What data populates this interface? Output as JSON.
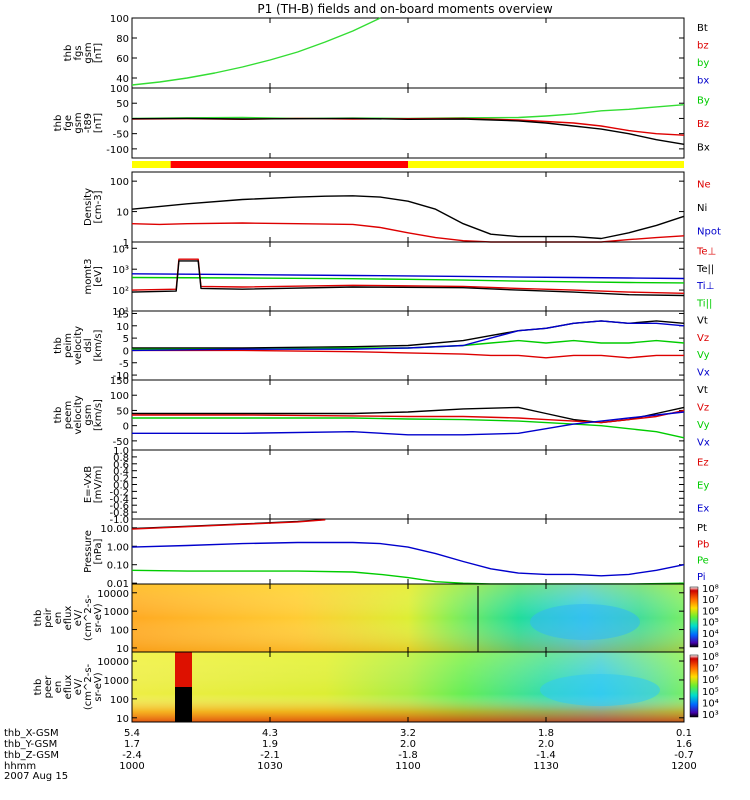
{
  "title": "P1 (TH-B) fields and on-board moments overview",
  "chart_data": [
    {
      "type": "line",
      "ylabel": [
        "thb",
        "fgs",
        "gsm",
        "[nT]"
      ],
      "yticks": [
        "100",
        "80",
        "60",
        "40"
      ],
      "ylim": [
        30,
        100
      ],
      "legend": [
        {
          "name": "Bt",
          "color": "#000000"
        },
        {
          "name": "bz",
          "color": "#dd0000"
        },
        {
          "name": "by",
          "color": "#00cc00"
        },
        {
          "name": "bx",
          "color": "#0000cc"
        }
      ],
      "series": [
        {
          "name": "by",
          "color": "#33dd33",
          "x": [
            0,
            0.05,
            0.1,
            0.15,
            0.2,
            0.25,
            0.3,
            0.35,
            0.4,
            0.45
          ],
          "y": [
            33,
            36,
            40,
            45,
            51,
            58,
            66,
            76,
            87,
            100
          ]
        }
      ]
    },
    {
      "type": "line",
      "ylabel": [
        "thb",
        "fge",
        "gsm",
        "-t89",
        "[nT]"
      ],
      "yticks": [
        "100",
        "50",
        "0",
        "-50",
        "-100"
      ],
      "ylim": [
        -130,
        100
      ],
      "legend": [
        {
          "name": "By",
          "color": "#00cc00"
        },
        {
          "name": "Bz",
          "color": "#dd0000"
        },
        {
          "name": "Bx",
          "color": "#000000"
        }
      ],
      "series": [
        {
          "name": "By",
          "color": "#33dd33",
          "x": [
            0,
            0.1,
            0.2,
            0.3,
            0.4,
            0.5,
            0.6,
            0.7,
            0.75,
            0.8,
            0.85,
            0.9,
            0.95,
            1.0
          ],
          "y": [
            0,
            2,
            3,
            0,
            1,
            0,
            2,
            3,
            8,
            15,
            25,
            30,
            38,
            45
          ]
        },
        {
          "name": "Bz",
          "color": "#dd0000",
          "x": [
            0,
            0.1,
            0.2,
            0.3,
            0.4,
            0.5,
            0.6,
            0.7,
            0.75,
            0.8,
            0.85,
            0.9,
            0.95,
            1.0
          ],
          "y": [
            -2,
            -1,
            -3,
            0,
            -2,
            -1,
            0,
            -5,
            -10,
            -15,
            -25,
            -40,
            -50,
            -55
          ]
        },
        {
          "name": "Bx",
          "color": "#000000",
          "x": [
            0,
            0.1,
            0.2,
            0.3,
            0.4,
            0.5,
            0.6,
            0.7,
            0.75,
            0.8,
            0.85,
            0.9,
            0.95,
            1.0
          ],
          "y": [
            -1,
            0,
            -2,
            -1,
            0,
            -3,
            -2,
            -8,
            -15,
            -25,
            -35,
            -50,
            -70,
            -85
          ]
        }
      ],
      "mode_bar": [
        {
          "from": 0,
          "to": 0.07,
          "color": "#ffff00"
        },
        {
          "from": 0.07,
          "to": 0.5,
          "color": "#ff0000"
        },
        {
          "from": 0.5,
          "to": 1.0,
          "color": "#ffff00"
        }
      ]
    },
    {
      "type": "line",
      "log": true,
      "ylabel": [
        "Density",
        "[cm-3]"
      ],
      "yticks": [
        "100",
        "10",
        "1"
      ],
      "ylim": [
        1,
        200
      ],
      "legend": [
        {
          "name": "Ne",
          "color": "#dd0000"
        },
        {
          "name": "Ni",
          "color": "#000000"
        },
        {
          "name": "Npot",
          "color": "#0000cc"
        }
      ],
      "series": [
        {
          "name": "Ni",
          "color": "#000000",
          "x": [
            0,
            0.1,
            0.2,
            0.3,
            0.35,
            0.4,
            0.45,
            0.5,
            0.55,
            0.6,
            0.65,
            0.7,
            0.8,
            0.85,
            0.9,
            0.95,
            1.0
          ],
          "y": [
            12,
            18,
            25,
            30,
            32,
            33,
            30,
            22,
            12,
            4,
            1.8,
            1.5,
            1.5,
            1.3,
            2.0,
            3.5,
            7.0
          ]
        },
        {
          "name": "Ne",
          "color": "#dd0000",
          "x": [
            0,
            0.05,
            0.1,
            0.2,
            0.3,
            0.4,
            0.45,
            0.5,
            0.55,
            0.6,
            0.65,
            0.7,
            0.8,
            0.85,
            0.9,
            0.95,
            1.0
          ],
          "y": [
            4,
            3.8,
            4.0,
            4.2,
            4.0,
            3.8,
            3.0,
            2.0,
            1.4,
            1.1,
            1.0,
            1.0,
            1.0,
            1.0,
            1.2,
            1.4,
            1.6
          ]
        }
      ]
    },
    {
      "type": "line",
      "log": true,
      "ylabel": [
        "momt3",
        "[eV]"
      ],
      "yticks": [
        "10⁴",
        "10³",
        "10²",
        "10¹"
      ],
      "ylim": [
        10,
        20000
      ],
      "legend": [
        {
          "name": "Te⊥",
          "color": "#dd0000"
        },
        {
          "name": "Te||",
          "color": "#000000"
        },
        {
          "name": "Ti⊥",
          "color": "#0000cc"
        },
        {
          "name": "Ti||",
          "color": "#00cc00"
        }
      ],
      "series": [
        {
          "name": "Ti⊥",
          "color": "#0000cc",
          "x": [
            0,
            0.2,
            0.4,
            0.5,
            0.6,
            0.7,
            0.8,
            0.9,
            1.0
          ],
          "y": [
            600,
            550,
            500,
            480,
            450,
            420,
            400,
            380,
            360
          ]
        },
        {
          "name": "Ti||",
          "color": "#00cc00",
          "x": [
            0,
            0.2,
            0.4,
            0.5,
            0.6,
            0.7,
            0.8,
            0.9,
            1.0
          ],
          "y": [
            400,
            380,
            350,
            330,
            300,
            270,
            250,
            230,
            220
          ]
        },
        {
          "name": "Te⊥",
          "color": "#dd0000",
          "x": [
            0,
            0.08,
            0.085,
            0.12,
            0.125,
            0.2,
            0.4,
            0.6,
            0.7,
            0.8,
            0.9,
            1.0
          ],
          "y": [
            100,
            110,
            3000,
            3000,
            150,
            140,
            170,
            150,
            120,
            100,
            80,
            70
          ]
        },
        {
          "name": "Te||",
          "color": "#000000",
          "x": [
            0,
            0.08,
            0.085,
            0.12,
            0.125,
            0.2,
            0.4,
            0.6,
            0.7,
            0.8,
            0.9,
            1.0
          ],
          "y": [
            80,
            90,
            2500,
            2500,
            120,
            110,
            140,
            130,
            100,
            80,
            60,
            55
          ]
        }
      ]
    },
    {
      "type": "line",
      "ylabel": [
        "thb",
        "peim",
        "velocity",
        "dsl",
        "[km/s]"
      ],
      "yticks": [
        "15",
        "10",
        "5",
        "0",
        "-5",
        "-10"
      ],
      "ylim": [
        -12,
        16
      ],
      "legend": [
        {
          "name": "Vt",
          "color": "#000000"
        },
        {
          "name": "Vz",
          "color": "#dd0000"
        },
        {
          "name": "Vy",
          "color": "#00cc00"
        },
        {
          "name": "Vx",
          "color": "#0000cc"
        }
      ],
      "series": [
        {
          "name": "Vt",
          "color": "#000000",
          "x": [
            0,
            0.2,
            0.4,
            0.5,
            0.6,
            0.65,
            0.7,
            0.75,
            0.8,
            0.85,
            0.9,
            0.95,
            1.0
          ],
          "y": [
            1,
            1,
            1.5,
            2,
            4,
            6,
            8,
            9,
            11,
            12,
            11,
            12,
            11
          ]
        },
        {
          "name": "Vy",
          "color": "#00cc00",
          "x": [
            0,
            0.2,
            0.4,
            0.5,
            0.6,
            0.65,
            0.7,
            0.75,
            0.8,
            0.85,
            0.9,
            0.95,
            1.0
          ],
          "y": [
            0.5,
            0.5,
            1,
            1,
            2,
            3,
            4,
            3,
            4,
            3,
            3,
            4,
            3
          ]
        },
        {
          "name": "Vz",
          "color": "#dd0000",
          "x": [
            0,
            0.2,
            0.4,
            0.5,
            0.6,
            0.65,
            0.7,
            0.75,
            0.8,
            0.85,
            0.9,
            0.95,
            1.0
          ],
          "y": [
            0,
            0,
            -0.5,
            -1,
            -1.5,
            -2,
            -2,
            -3,
            -2,
            -2,
            -3,
            -2,
            -2
          ]
        },
        {
          "name": "Vx",
          "color": "#0000cc",
          "x": [
            0,
            0.2,
            0.4,
            0.5,
            0.6,
            0.65,
            0.7,
            0.75,
            0.8,
            0.85,
            0.9,
            0.95,
            1.0
          ],
          "y": [
            0,
            0.5,
            0.5,
            1,
            2,
            5,
            8,
            9,
            11,
            12,
            11,
            11,
            10
          ]
        }
      ]
    },
    {
      "type": "line",
      "ylabel": [
        "thb",
        "peem",
        "velocity",
        "gsm",
        "[km/s]"
      ],
      "yticks": [
        "150",
        "100",
        "50",
        "0",
        "-50"
      ],
      "ylim": [
        -80,
        150
      ],
      "legend": [
        {
          "name": "Vt",
          "color": "#000000"
        },
        {
          "name": "Vz",
          "color": "#dd0000"
        },
        {
          "name": "Vy",
          "color": "#00cc00"
        },
        {
          "name": "Vx",
          "color": "#0000cc"
        }
      ],
      "series": [
        {
          "name": "Vt",
          "color": "#000000",
          "x": [
            0,
            0.2,
            0.4,
            0.5,
            0.6,
            0.7,
            0.75,
            0.8,
            0.85,
            0.9,
            0.95,
            1.0
          ],
          "y": [
            40,
            40,
            40,
            45,
            55,
            60,
            40,
            20,
            10,
            20,
            40,
            60
          ]
        },
        {
          "name": "Vz",
          "color": "#dd0000",
          "x": [
            0,
            0.2,
            0.4,
            0.5,
            0.6,
            0.7,
            0.75,
            0.8,
            0.85,
            0.9,
            0.95,
            1.0
          ],
          "y": [
            35,
            35,
            32,
            30,
            30,
            25,
            20,
            15,
            10,
            20,
            30,
            50
          ]
        },
        {
          "name": "Vy",
          "color": "#00cc00",
          "x": [
            0,
            0.2,
            0.4,
            0.5,
            0.6,
            0.7,
            0.75,
            0.8,
            0.85,
            0.9,
            0.95,
            1.0
          ],
          "y": [
            25,
            25,
            25,
            22,
            20,
            15,
            10,
            5,
            0,
            -10,
            -20,
            -40
          ]
        },
        {
          "name": "Vx",
          "color": "#0000cc",
          "x": [
            0,
            0.2,
            0.4,
            0.5,
            0.6,
            0.7,
            0.75,
            0.8,
            0.85,
            0.9,
            0.95,
            1.0
          ],
          "y": [
            -25,
            -25,
            -20,
            -30,
            -30,
            -25,
            -10,
            5,
            15,
            25,
            35,
            45
          ]
        }
      ]
    },
    {
      "type": "line",
      "ylabel": [
        "E=-VxB",
        "[mV/m]"
      ],
      "yticks": [
        "1.0",
        "0.8",
        "0.6",
        "0.4",
        "0.2",
        "0.0",
        "-0.2",
        "-0.4",
        "-0.6",
        "-0.8",
        "-1.0"
      ],
      "ylim": [
        -1,
        1
      ],
      "legend": [
        {
          "name": "Ez",
          "color": "#dd0000"
        },
        {
          "name": "Ey",
          "color": "#00cc00"
        },
        {
          "name": "Ex",
          "color": "#0000cc"
        }
      ],
      "series": []
    },
    {
      "type": "line",
      "log": true,
      "ylabel": [
        "Pressure",
        "[nPa]"
      ],
      "yticks": [
        "10.00",
        "1.00",
        "0.10",
        "0.01"
      ],
      "ylim": [
        0.009,
        30
      ],
      "legend": [
        {
          "name": "Pt",
          "color": "#000000"
        },
        {
          "name": "Pb",
          "color": "#dd0000"
        },
        {
          "name": "Pe",
          "color": "#00cc00"
        },
        {
          "name": "Pi",
          "color": "#0000cc"
        }
      ],
      "series": [
        {
          "name": "Pt",
          "color": "#000000",
          "x": [
            0,
            0.1,
            0.2,
            0.3,
            0.35
          ],
          "y": [
            9,
            12,
            16,
            22,
            28
          ]
        },
        {
          "name": "Pb",
          "color": "#dd0000",
          "x": [
            0,
            0.1,
            0.2,
            0.3,
            0.35
          ],
          "y": [
            8.5,
            11.5,
            15.5,
            21,
            27
          ]
        },
        {
          "name": "Pi",
          "color": "#0000cc",
          "x": [
            0,
            0.1,
            0.2,
            0.3,
            0.4,
            0.45,
            0.5,
            0.55,
            0.6,
            0.65,
            0.7,
            0.75,
            0.8,
            0.85,
            0.9,
            0.95,
            1.0
          ],
          "y": [
            0.9,
            1.1,
            1.4,
            1.6,
            1.6,
            1.4,
            0.9,
            0.4,
            0.15,
            0.06,
            0.035,
            0.03,
            0.03,
            0.025,
            0.03,
            0.05,
            0.1
          ]
        },
        {
          "name": "Pe",
          "color": "#00cc00",
          "x": [
            0,
            0.1,
            0.2,
            0.3,
            0.4,
            0.45,
            0.5,
            0.55,
            0.6,
            0.65,
            0.7,
            0.8,
            0.9,
            1.0
          ],
          "y": [
            0.05,
            0.045,
            0.045,
            0.045,
            0.04,
            0.03,
            0.02,
            0.012,
            0.01,
            0.009,
            0.009,
            0.009,
            0.009,
            0.01
          ]
        }
      ]
    },
    {
      "type": "heatmap",
      "ylabel": [
        "thb",
        "peir",
        "en",
        "eflux",
        "eV/",
        "(cm^2-s-",
        "sr-eV)"
      ],
      "yticks": [
        "10000",
        "1000",
        "100",
        "10"
      ],
      "ylim": [
        6,
        30000
      ],
      "colorbar_ticks": [
        "10⁸",
        "10⁷",
        "10⁶",
        "10⁵",
        "10⁴",
        "10³"
      ]
    },
    {
      "type": "heatmap",
      "ylabel": [
        "thb",
        "peer",
        "en",
        "eflux",
        "eV/",
        "(cm^2-s-",
        "sr-eV)"
      ],
      "yticks": [
        "10000",
        "1000",
        "100",
        "10"
      ],
      "ylim": [
        6,
        30000
      ],
      "colorbar_ticks": [
        "10⁸",
        "10⁷",
        "10⁶",
        "10⁵",
        "10⁴",
        "10³"
      ]
    }
  ],
  "time_axis": {
    "row_labels": [
      "thb_X-GSM",
      "thb_Y-GSM",
      "thb_Z-GSM",
      "hhmm",
      "2007 Aug 15"
    ],
    "ticks": [
      {
        "x": 0.0,
        "X": "5.4",
        "Y": "1.7",
        "Z": "-2.4",
        "t": "1000"
      },
      {
        "x": 0.25,
        "X": "4.3",
        "Y": "1.9",
        "Z": "-2.1",
        "t": "1030"
      },
      {
        "x": 0.5,
        "X": "3.2",
        "Y": "2.0",
        "Z": "-1.8",
        "t": "1100"
      },
      {
        "x": 0.75,
        "X": "1.8",
        "Y": "2.0",
        "Z": "-1.4",
        "t": "1130"
      },
      {
        "x": 1.0,
        "X": "0.1",
        "Y": "1.6",
        "Z": "-0.7",
        "t": "1200"
      }
    ]
  }
}
